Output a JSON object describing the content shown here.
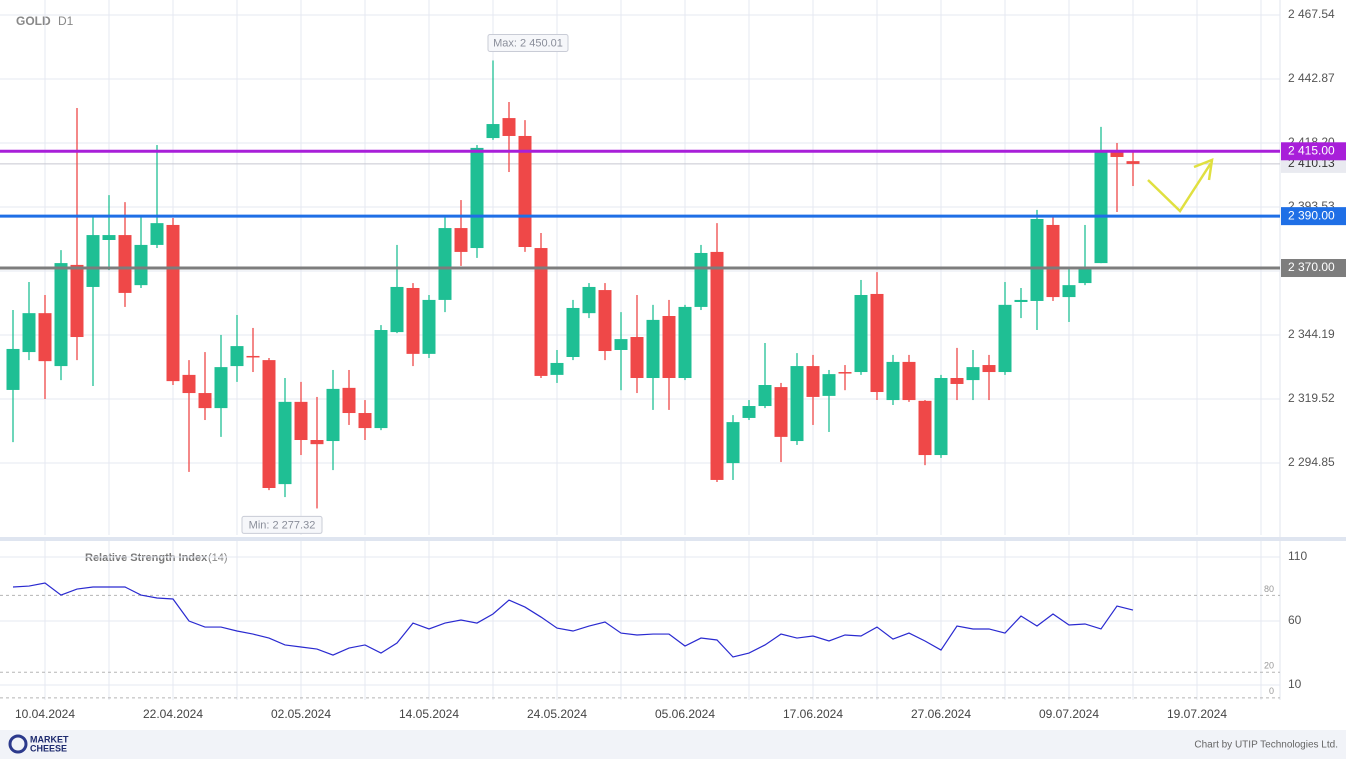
{
  "chart_data": {
    "type": "candlestick",
    "title": "GOLD",
    "timeframe": "D1",
    "up_color": "#1fbf94",
    "down_color": "#ef4848",
    "categories": [
      null,
      null,
      "10.04.2024",
      null,
      null,
      null,
      null,
      null,
      null,
      null,
      "22.04.2024",
      null,
      null,
      null,
      null,
      null,
      null,
      null,
      "02.05.2024",
      null,
      null,
      null,
      null,
      null,
      null,
      null,
      "14.05.2024",
      null,
      null,
      null,
      null,
      null,
      null,
      null,
      "24.05.2024",
      null,
      null,
      null,
      null,
      null,
      null,
      null,
      "05.06.2024",
      null,
      null,
      null,
      null,
      null,
      null,
      null,
      "17.06.2024",
      null,
      null,
      null,
      null,
      null,
      null,
      null,
      "27.06.2024",
      null,
      null,
      null,
      null,
      null,
      null,
      null,
      "09.07.2024",
      null,
      null,
      null,
      null,
      null,
      null,
      null,
      "19.07.2024",
      null,
      null,
      null,
      null,
      null
    ],
    "open": [
      2323.0,
      2337.6,
      2352.6,
      2332.2,
      2371.2,
      2362.7,
      2380.8,
      2382.7,
      2363.4,
      2378.9,
      2386.6,
      2328.8,
      2321.8,
      2316.0,
      2332.2,
      2336.1,
      2334.5,
      2286.7,
      2318.4,
      2303.7,
      2303.3,
      2323.8,
      2314.1,
      2308.3,
      2345.3,
      2362.3,
      2336.9,
      2357.7,
      2385.4,
      2377.7,
      2420.1,
      2427.8,
      2420.9,
      2377.7,
      2328.8,
      2335.7,
      2352.6,
      2361.5,
      2338.4,
      2343.4,
      2327.6,
      2351.5,
      2327.6,
      2355.0,
      2376.2,
      2294.8,
      2312.2,
      2316.8,
      2324.1,
      2303.3,
      2332.2,
      2320.7,
      2329.9,
      2329.9,
      2360.0,
      2319.1,
      2333.8,
      2318.8,
      2297.9,
      2327.6,
      2326.8,
      2332.6,
      2329.9,
      2356.9,
      2357.3,
      2386.6,
      2358.8,
      2364.2,
      2371.9,
      2414.7,
      2411.2,
      null,
      null,
      null,
      null,
      null,
      null,
      null,
      null,
      null
    ],
    "high": [
      2353.8,
      2364.6,
      2359.6,
      2376.9,
      2431.7,
      2390.4,
      2398.1,
      2395.4,
      2390.4,
      2417.4,
      2389.3,
      2334.5,
      2337.6,
      2344.2,
      2351.9,
      2346.9,
      2335.3,
      2327.6,
      2326.1,
      2320.3,
      2330.7,
      2330.7,
      2319.1,
      2348.0,
      2378.9,
      2364.2,
      2359.6,
      2390.4,
      2396.2,
      2417.4,
      2450.01,
      2434.0,
      2427.0,
      2383.5,
      2338.4,
      2357.7,
      2364.2,
      2364.2,
      2353.0,
      2359.6,
      2355.8,
      2357.7,
      2355.8,
      2378.9,
      2387.3,
      2313.3,
      2319.1,
      2341.1,
      2325.7,
      2337.2,
      2336.5,
      2330.7,
      2332.6,
      2365.4,
      2368.4,
      2336.5,
      2336.5,
      2319.1,
      2328.8,
      2339.2,
      2338.4,
      2336.5,
      2364.6,
      2362.3,
      2392.4,
      2390.4,
      2370.4,
      2386.6,
      2424.4,
      2418.2,
      2415.5,
      null,
      null,
      null,
      null,
      null,
      null,
      null,
      null,
      null
    ],
    "low": [
      2302.9,
      2334.5,
      2319.5,
      2326.8,
      2334.5,
      2324.5,
      2369.2,
      2355.0,
      2362.3,
      2377.7,
      2324.9,
      2291.4,
      2311.4,
      2304.9,
      2326.1,
      2329.9,
      2284.4,
      2281.7,
      2297.9,
      2277.32,
      2292.1,
      2309.5,
      2303.7,
      2307.5,
      2344.9,
      2332.2,
      2335.3,
      2353.0,
      2370.8,
      2373.9,
      2419.4,
      2407.0,
      2376.2,
      2327.6,
      2325.7,
      2334.5,
      2350.7,
      2334.5,
      2322.9,
      2321.8,
      2315.3,
      2315.3,
      2326.8,
      2353.8,
      2287.5,
      2288.3,
      2311.4,
      2316.0,
      2295.2,
      2301.8,
      2309.5,
      2306.8,
      2322.9,
      2328.8,
      2319.1,
      2317.2,
      2318.4,
      2294.0,
      2296.8,
      2319.1,
      2319.1,
      2319.1,
      2328.8,
      2350.7,
      2346.1,
      2357.3,
      2349.2,
      2363.4,
      2371.9,
      2391.6,
      2401.6,
      null,
      null,
      null,
      null,
      null,
      null,
      null,
      null,
      null
    ],
    "close": [
      2338.8,
      2352.6,
      2334.1,
      2371.9,
      2343.4,
      2382.7,
      2382.7,
      2360.4,
      2378.9,
      2387.3,
      2326.4,
      2321.8,
      2316.0,
      2331.8,
      2339.9,
      2335.7,
      2285.2,
      2318.4,
      2303.7,
      2302.1,
      2323.4,
      2314.1,
      2308.3,
      2346.1,
      2362.7,
      2336.9,
      2357.7,
      2385.4,
      2376.2,
      2416.3,
      2425.5,
      2420.9,
      2378.1,
      2328.4,
      2333.4,
      2354.6,
      2362.7,
      2338.0,
      2342.6,
      2327.6,
      2350.0,
      2327.6,
      2355.0,
      2375.8,
      2288.3,
      2310.6,
      2316.8,
      2324.9,
      2304.9,
      2332.2,
      2320.3,
      2329.1,
      2329.5,
      2359.6,
      2322.2,
      2333.8,
      2319.1,
      2297.9,
      2327.6,
      2325.3,
      2331.8,
      2329.9,
      2355.8,
      2357.7,
      2388.9,
      2358.8,
      2363.4,
      2370.4,
      2414.7,
      2412.8,
      2410.13,
      null,
      null,
      null,
      null,
      null,
      null,
      null,
      null,
      null
    ],
    "ylim": [
      2267.08,
      2471.39
    ],
    "yticks": [
      {
        "value": 2467.54,
        "label": "2 467.54"
      },
      {
        "value": 2442.87,
        "label": "2 442.87"
      },
      {
        "value": 2418.2,
        "label": "2 418.20"
      },
      {
        "value": 2393.53,
        "label": "2 393.53"
      },
      {
        "value": 2368.86,
        "label": "2 368.86"
      },
      {
        "value": 2344.19,
        "label": "2 344.19"
      },
      {
        "value": 2319.52,
        "label": "2 319.52"
      },
      {
        "value": 2294.85,
        "label": "2 294.85"
      }
    ],
    "grid": true,
    "levels": [
      {
        "value": 2415.0,
        "label": "2 415.00",
        "color": "#a81fd9"
      },
      {
        "value": 2390.0,
        "label": "2 390.00",
        "color": "#1f6fe6"
      },
      {
        "value": 2370.0,
        "label": "2 370.00",
        "color": "#7d7d7d"
      }
    ],
    "current": {
      "value": 2410.13,
      "label": "2 410.13"
    },
    "annotations": [
      {
        "kind": "max",
        "value": 2450.01,
        "label": "Max: 2 450.01"
      },
      {
        "kind": "min",
        "value": 2277.32,
        "label": "Min: 2 277.32"
      }
    ],
    "indicator": {
      "type": "line",
      "title": "Relative Strength Index",
      "period": "(14)",
      "color": "#2a2ad0",
      "values": [
        86.6,
        87.3,
        89.7,
        80.3,
        85.0,
        86.6,
        86.6,
        86.6,
        80.3,
        78.0,
        77.2,
        60.0,
        55.3,
        55.3,
        52.2,
        49.8,
        46.7,
        41.3,
        39.7,
        38.1,
        33.4,
        38.9,
        41.3,
        35.0,
        42.8,
        58.4,
        53.8,
        58.4,
        60.8,
        58.4,
        65.5,
        76.4,
        70.9,
        63.1,
        54.5,
        52.2,
        56.1,
        59.2,
        50.6,
        49.1,
        49.8,
        49.8,
        40.5,
        46.7,
        45.2,
        31.9,
        35.0,
        41.3,
        49.8,
        46.7,
        48.3,
        44.4,
        49.1,
        48.3,
        55.3,
        45.9,
        50.6,
        44.4,
        37.3,
        56.1,
        53.8,
        53.8,
        50.6,
        63.9,
        56.1,
        65.5,
        56.9,
        57.7,
        53.8,
        71.7,
        68.6,
        null,
        null,
        null,
        null,
        null,
        null,
        null,
        null,
        null
      ],
      "ylim": [
        -1.7,
        119.4
      ],
      "yticks": [
        110,
        60,
        10
      ],
      "levels": [
        80,
        20,
        0
      ]
    },
    "footer": {
      "brand": [
        "MARKET",
        "CHEESE"
      ],
      "credit": "Chart by UTIP Technologies Ltd."
    }
  }
}
